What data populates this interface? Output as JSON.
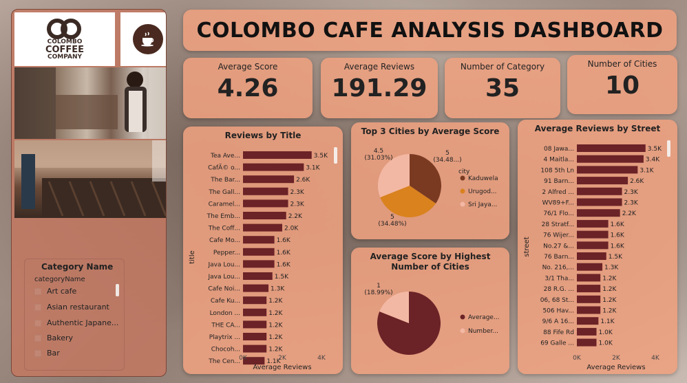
{
  "header": {
    "title": "COLOMBO CAFE ANALYSIS DASHBOARD"
  },
  "sidebar": {
    "logo": {
      "line1": "COLOMBO",
      "line2": "COFFEE",
      "line3": "COMPANY"
    },
    "filter": {
      "title": "Category Name",
      "field": "categoryName",
      "items": [
        "Art cafe",
        "Asian restaurant",
        "Authentic Japane...",
        "Bakery",
        "Bar"
      ]
    }
  },
  "kpis": [
    {
      "label": "Average Score",
      "value": "4.26"
    },
    {
      "label": "Average Reviews",
      "value": "191.29"
    },
    {
      "label": "Number of Category",
      "value": "35"
    },
    {
      "label": "Number of Cities",
      "value": "10"
    }
  ],
  "colors": {
    "bar": "#6b2327",
    "pie_dark": "#7a3a22",
    "pie_orange": "#d9821e",
    "pie_light": "#f3b8a4",
    "panel": "#eea080"
  },
  "chart_data": [
    {
      "type": "bar",
      "title": "Reviews by Title",
      "xlabel": "Average Reviews",
      "ylabel": "title",
      "xlim": [
        0,
        4000
      ],
      "xticks": [
        "0K",
        "2K",
        "4K"
      ],
      "categories": [
        "Tea Ave...",
        "CafÃ© o...",
        "The Bar...",
        "The Gall...",
        "Caramel...",
        "The Emb...",
        "The Coff...",
        "Cafe Mo...",
        "Pepper...",
        "Java Lou...",
        "Java Lou...",
        "Cafe Noi...",
        "Cafe Ku...",
        "London ...",
        "THE CA...",
        "Playtrix ...",
        "Chocoh...",
        "The Cen..."
      ],
      "values": [
        3500,
        3100,
        2600,
        2300,
        2300,
        2200,
        2000,
        1600,
        1600,
        1600,
        1500,
        1300,
        1200,
        1200,
        1200,
        1200,
        1200,
        1100
      ],
      "labels": [
        "3.5K",
        "3.1K",
        "2.6K",
        "2.3K",
        "2.3K",
        "2.2K",
        "2.0K",
        "1.6K",
        "1.6K",
        "1.6K",
        "1.5K",
        "1.3K",
        "1.2K",
        "1.2K",
        "1.2K",
        "1.2K",
        "1.2K",
        "1.1K"
      ]
    },
    {
      "type": "pie",
      "title": "Top 3 Cities by Average Score",
      "legend_title": "city",
      "legend_position": "right",
      "categories": [
        "Kaduwela",
        "Urugod...",
        "Sri Jaya..."
      ],
      "values": [
        5,
        5,
        4.5
      ],
      "labels": [
        "5 (34.48...)",
        "5 (34.48%)",
        "4.5 (31.03%)"
      ]
    },
    {
      "type": "pie",
      "title": "Average Score by Highest Number of Cities",
      "title_lines": [
        "Average Score by Highest",
        "Number of Cities"
      ],
      "legend_position": "right",
      "categories": [
        "Average...",
        "Number..."
      ],
      "values": [
        81.01,
        18.99
      ],
      "labels": [
        "",
        "1 (18.99%)"
      ]
    },
    {
      "type": "bar",
      "title": "Average Reviews by Street",
      "xlabel": "Average Reviews",
      "ylabel": "street",
      "xlim": [
        0,
        4000
      ],
      "xticks": [
        "0K",
        "2K",
        "4K"
      ],
      "categories": [
        "08 Jawa...",
        "4 Maitla...",
        "108 5th Ln",
        "91 Barn...",
        "2 Alfred ...",
        "WV89+F...",
        "76/1 Flo...",
        "28 Stratf...",
        "76 Wijer...",
        "No.27 &...",
        "76 Barn...",
        "No. 216,...",
        "3/1 Tha...",
        "28 R.G. ...",
        "06, 68 St...",
        "506 Hav...",
        "9/6 A 16...",
        "88 Fife Rd",
        "69 Galle ..."
      ],
      "values": [
        3500,
        3400,
        3100,
        2600,
        2300,
        2300,
        2200,
        1600,
        1600,
        1600,
        1500,
        1300,
        1200,
        1200,
        1200,
        1200,
        1100,
        1000,
        1000
      ],
      "labels": [
        "3.5K",
        "3.4K",
        "3.1K",
        "2.6K",
        "2.3K",
        "2.3K",
        "2.2K",
        "1.6K",
        "1.6K",
        "1.6K",
        "1.5K",
        "1.3K",
        "1.2K",
        "1.2K",
        "1.2K",
        "1.2K",
        "1.1K",
        "1.0K",
        "1.0K"
      ]
    }
  ]
}
